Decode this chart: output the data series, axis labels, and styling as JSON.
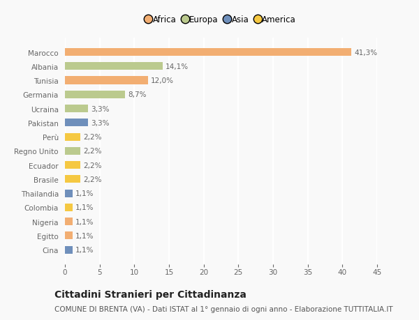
{
  "countries": [
    "Marocco",
    "Albania",
    "Tunisia",
    "Germania",
    "Ucraina",
    "Pakistan",
    "Perù",
    "Regno Unito",
    "Ecuador",
    "Brasile",
    "Thailandia",
    "Colombia",
    "Nigeria",
    "Egitto",
    "Cina"
  ],
  "values": [
    41.3,
    14.1,
    12.0,
    8.7,
    3.3,
    3.3,
    2.2,
    2.2,
    2.2,
    2.2,
    1.1,
    1.1,
    1.1,
    1.1,
    1.1
  ],
  "labels": [
    "41,3%",
    "14,1%",
    "12,0%",
    "8,7%",
    "3,3%",
    "3,3%",
    "2,2%",
    "2,2%",
    "2,2%",
    "2,2%",
    "1,1%",
    "1,1%",
    "1,1%",
    "1,1%",
    "1,1%"
  ],
  "continents": [
    "Africa",
    "Europa",
    "Africa",
    "Europa",
    "Europa",
    "Asia",
    "America",
    "Europa",
    "America",
    "America",
    "Asia",
    "America",
    "Africa",
    "Africa",
    "Asia"
  ],
  "colors": {
    "Africa": "#F2AE72",
    "Europa": "#BBCA8E",
    "Asia": "#6F8FBB",
    "America": "#F5C842"
  },
  "xlim": [
    0,
    45
  ],
  "xticks": [
    0,
    5,
    10,
    15,
    20,
    25,
    30,
    35,
    40,
    45
  ],
  "title": "Cittadini Stranieri per Cittadinanza",
  "subtitle": "COMUNE DI BRENTA (VA) - Dati ISTAT al 1° gennaio di ogni anno - Elaborazione TUTTITALIA.IT",
  "background_color": "#f9f9f9",
  "grid_color": "#ffffff",
  "label_fontsize": 7.5,
  "tick_fontsize": 7.5,
  "title_fontsize": 10,
  "subtitle_fontsize": 7.5
}
